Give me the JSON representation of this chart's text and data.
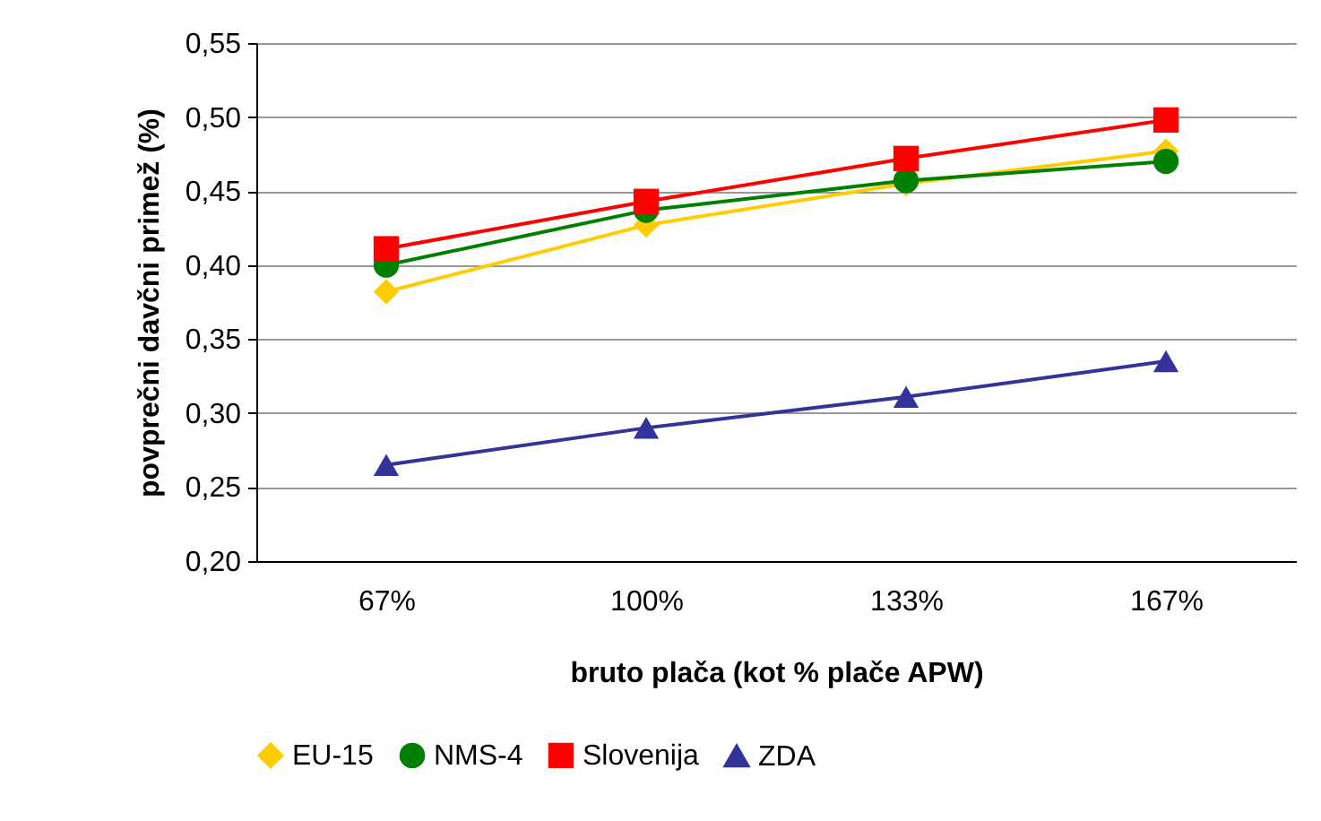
{
  "chart_data": {
    "type": "line",
    "xlabel": "bruto plača (kot % plače APW)",
    "ylabel": "povprečni davčni primež (%)",
    "categories": [
      "67%",
      "100%",
      "133%",
      "167%"
    ],
    "series": [
      {
        "name": "EU-15",
        "color": "#ffcc00",
        "marker": "diamond",
        "values": [
          0.382,
          0.427,
          0.455,
          0.477
        ]
      },
      {
        "name": "NMS-4",
        "color": "#008000",
        "marker": "circle",
        "values": [
          0.4,
          0.437,
          0.457,
          0.47
        ]
      },
      {
        "name": "Slovenija",
        "color": "#ff0000",
        "marker": "square",
        "values": [
          0.411,
          0.443,
          0.472,
          0.498
        ]
      },
      {
        "name": "ZDA",
        "color": "#333399",
        "marker": "triangle",
        "values": [
          0.265,
          0.29,
          0.311,
          0.335
        ]
      }
    ],
    "ylim": [
      0.2,
      0.55
    ],
    "yticks": [
      {
        "value": 0.2,
        "label": "0,20"
      },
      {
        "value": 0.25,
        "label": "0,25"
      },
      {
        "value": 0.3,
        "label": "0,30"
      },
      {
        "value": 0.35,
        "label": "0,35"
      },
      {
        "value": 0.4,
        "label": "0,40"
      },
      {
        "value": 0.45,
        "label": "0,45"
      },
      {
        "value": 0.5,
        "label": "0,50"
      },
      {
        "value": 0.55,
        "label": "0,55"
      }
    ],
    "grid": "y",
    "legend": "bottom",
    "line_style": "solid"
  }
}
